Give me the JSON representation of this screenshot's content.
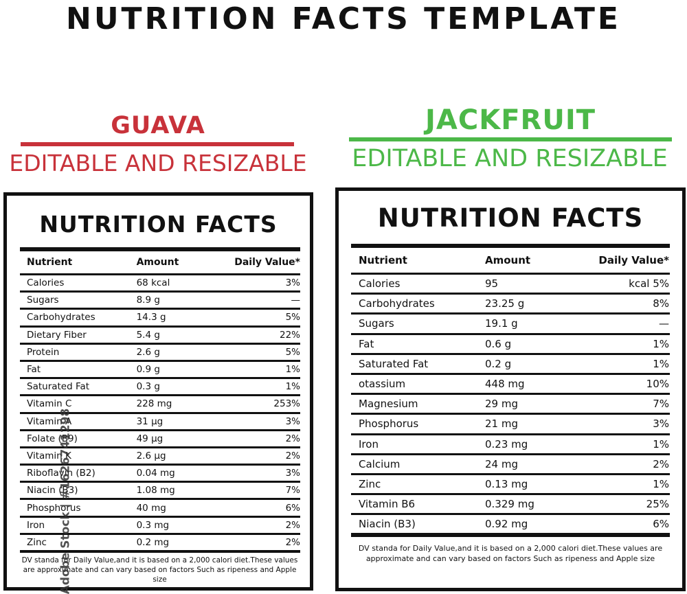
{
  "page_title": "NUTRITION FACTS TEMPLATE",
  "colors": {
    "guava": "#c8323a",
    "jackfruit": "#4cb848",
    "ink": "#111111"
  },
  "guava": {
    "name": "GUAVA",
    "subtitle": "EDITABLE AND RESIZABLE",
    "panel_title": "NUTRITION FACTS",
    "headers": {
      "nutrient": "Nutrient",
      "amount": "Amount",
      "dv": "Daily Value*"
    },
    "rows": [
      {
        "nutrient": "Calories",
        "amount": "68 kcal",
        "dv": "3%"
      },
      {
        "nutrient": "Sugars",
        "amount": "8.9 g",
        "dv": "—"
      },
      {
        "nutrient": "Carbohydrates",
        "amount": "14.3 g",
        "dv": "5%"
      },
      {
        "nutrient": "Dietary Fiber",
        "amount": "5.4 g",
        "dv": "22%"
      },
      {
        "nutrient": "Protein",
        "amount": "2.6 g",
        "dv": "5%"
      },
      {
        "nutrient": "Fat",
        "amount": "0.9 g",
        "dv": "1%"
      },
      {
        "nutrient": "Saturated Fat",
        "amount": "0.3 g",
        "dv": "1%"
      },
      {
        "nutrient": "Vitamin C",
        "amount": "228 mg",
        "dv": "253%"
      },
      {
        "nutrient": "Vitamin A",
        "amount": "31 µg",
        "dv": "3%"
      },
      {
        "nutrient": "Folate (B9)",
        "amount": "49 µg",
        "dv": "2%"
      },
      {
        "nutrient": "Vitamin K",
        "amount": "2.6 µg",
        "dv": "2%"
      },
      {
        "nutrient": "Riboflavin (B2)",
        "amount": "0.04 mg",
        "dv": "3%"
      },
      {
        "nutrient": "Niacin (B3)",
        "amount": "1.08 mg",
        "dv": "7%"
      },
      {
        "nutrient": "Phosphorus",
        "amount": "40 mg",
        "dv": "6%"
      },
      {
        "nutrient": "Iron",
        "amount": "0.3 mg",
        "dv": "2%"
      },
      {
        "nutrient": "Zinc",
        "amount": "0.2 mg",
        "dv": "2%"
      }
    ],
    "footnote": "DV standa for Daily Value,and it is based on a 2,000 calori diet.These values are approximate and can vary based on factors Such as ripeness and Apple size"
  },
  "jackfruit": {
    "name": "JACKFRUIT",
    "subtitle": "EDITABLE AND RESIZABLE",
    "panel_title": "NUTRITION FACTS",
    "headers": {
      "nutrient": "Nutrient",
      "amount": "Amount",
      "dv": "Daily Value*"
    },
    "rows": [
      {
        "nutrient": "Calories",
        "amount": "95",
        "dv": "kcal  5%"
      },
      {
        "nutrient": "Carbohydrates",
        "amount": "23.25 g",
        "dv": "8%"
      },
      {
        "nutrient": "Sugars",
        "amount": "19.1 g",
        "dv": "—"
      },
      {
        "nutrient": "Fat",
        "amount": "0.6 g",
        "dv": "1%"
      },
      {
        "nutrient": "Saturated Fat",
        "amount": "0.2 g",
        "dv": "1%"
      },
      {
        "nutrient": "otassium",
        "amount": "448 mg",
        "dv": "10%"
      },
      {
        "nutrient": "Magnesium",
        "amount": "29 mg",
        "dv": "7%"
      },
      {
        "nutrient": "Phosphorus",
        "amount": "21 mg",
        "dv": "3%"
      },
      {
        "nutrient": "Iron",
        "amount": "0.23 mg",
        "dv": "1%"
      },
      {
        "nutrient": "Calcium",
        "amount": "24 mg",
        "dv": "2%"
      },
      {
        "nutrient": "Zinc",
        "amount": "0.13 mg",
        "dv": "1%"
      },
      {
        "nutrient": "Vitamin B6",
        "amount": "0.329 mg",
        "dv": "25%"
      },
      {
        "nutrient": "Niacin (B3)",
        "amount": "0.92 mg",
        "dv": "6%"
      }
    ],
    "footnote": "DV standa for Daily Value,and it is based on a 2,000 calori diet.These values are approximate and can vary based on factors Such as ripeness and Apple size"
  },
  "watermark_side": "Adobe Stock | #1626741298"
}
